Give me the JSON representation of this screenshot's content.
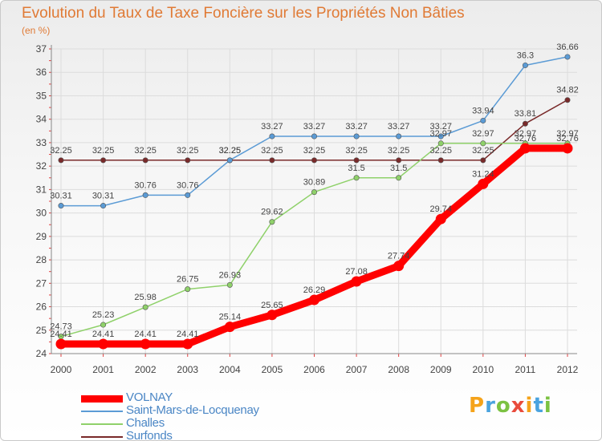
{
  "title": "Evolution du Taux de Taxe Foncière sur les Propriétés Non Bâties",
  "unit_label": "(en %)",
  "logo": {
    "text": "Proxiti",
    "letters": [
      {
        "ch": "P",
        "color": "#f5a31a"
      },
      {
        "ch": "r",
        "color": "#4aa3df"
      },
      {
        "ch": "o",
        "color": "#7cc242"
      },
      {
        "ch": "x",
        "color": "#e94b3c"
      },
      {
        "ch": "i",
        "color": "#f5a31a"
      },
      {
        "ch": "t",
        "color": "#4aa3df"
      },
      {
        "ch": "i",
        "color": "#7cc242"
      }
    ]
  },
  "chart_data": {
    "type": "line",
    "x": [
      "2000",
      "2001",
      "2002",
      "2003",
      "2004",
      "2005",
      "2006",
      "2007",
      "2008",
      "2009",
      "2010",
      "2011",
      "2012"
    ],
    "ylim": [
      24,
      37
    ],
    "yticks": [
      24,
      25,
      26,
      27,
      28,
      29,
      30,
      31,
      32,
      33,
      34,
      35,
      36,
      37
    ],
    "grid": true,
    "legend_position": "bottom-left",
    "series": [
      {
        "name": "VOLNAY",
        "color": "#ff0000",
        "values": [
          24.41,
          24.41,
          24.41,
          24.41,
          25.14,
          25.65,
          26.29,
          27.08,
          27.74,
          29.74,
          31.24,
          32.76,
          32.76
        ],
        "labels": [
          "24.41",
          "24.41",
          "24.41",
          "24.41",
          "25.14",
          "25.65",
          "26.29",
          "27.08",
          "27.74",
          "29.74",
          "31.24",
          "32.76",
          "32.76"
        ]
      },
      {
        "name": "Saint-Mars-de-Locquenay",
        "color": "#5b9bd5",
        "values": [
          30.31,
          30.31,
          30.76,
          30.76,
          32.25,
          33.27,
          33.27,
          33.27,
          33.27,
          33.27,
          33.94,
          36.3,
          36.66
        ],
        "labels": [
          "30.31",
          "30.31",
          "30.76",
          "30.76",
          "32.25",
          "33.27",
          "33.27",
          "33.27",
          "33.27",
          "33.27",
          "33.94",
          "36.3",
          "36.66"
        ]
      },
      {
        "name": "Challes",
        "color": "#8fd16a",
        "values": [
          24.73,
          25.23,
          25.98,
          26.75,
          26.93,
          29.62,
          30.89,
          31.5,
          31.5,
          32.97,
          32.97,
          32.97,
          32.97
        ],
        "labels": [
          "24.73",
          "25.23",
          "25.98",
          "26.75",
          "26.93",
          "29.62",
          "30.89",
          "31.5",
          "31.5",
          "32.97",
          "32.97",
          "32.97",
          "32.97"
        ]
      },
      {
        "name": "Surfonds",
        "color": "#7a2a2a",
        "values": [
          32.25,
          32.25,
          32.25,
          32.25,
          32.25,
          32.25,
          32.25,
          32.25,
          32.25,
          32.25,
          32.25,
          33.81,
          34.82
        ],
        "labels": [
          "32.25",
          "32.25",
          "32.25",
          "32.25",
          "32.25",
          "32.25",
          "32.25",
          "32.25",
          "32.25",
          "32.25",
          "32.25",
          "33.81",
          "34.82"
        ]
      }
    ]
  }
}
